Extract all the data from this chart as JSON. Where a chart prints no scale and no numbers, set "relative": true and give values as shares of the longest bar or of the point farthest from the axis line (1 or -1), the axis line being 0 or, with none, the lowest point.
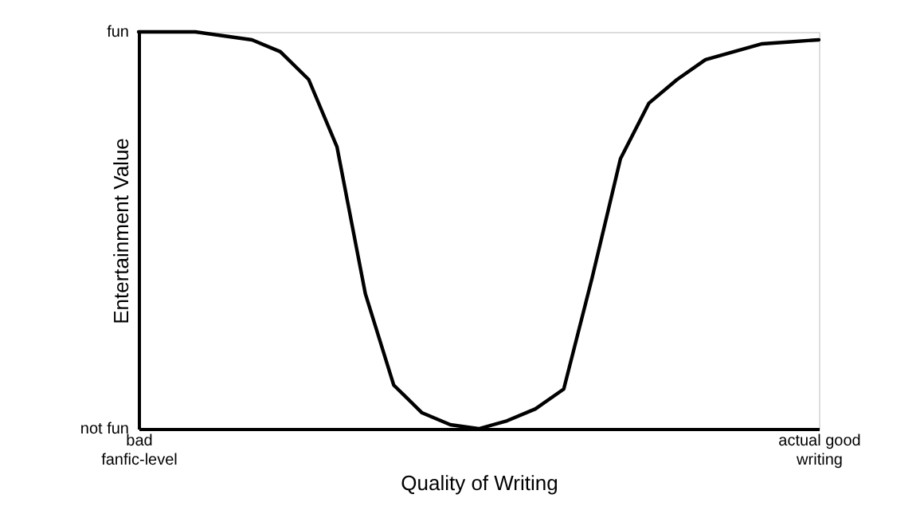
{
  "chart_data": {
    "type": "line",
    "relative": true,
    "xlabel": "Quality of Writing",
    "ylabel": "Entertainment Value",
    "categories": [
      "bad fanfic-level",
      null,
      null,
      null,
      null,
      null,
      null,
      null,
      null,
      null,
      null,
      null,
      null,
      null,
      null,
      null,
      null,
      null,
      null,
      null,
      null,
      null,
      null,
      null,
      "actual good writing"
    ],
    "annotations": [
      "fun",
      "not fun"
    ],
    "marker": "none",
    "line_style": "solid",
    "series": [
      {
        "color": "#000000",
        "values": [
          1,
          1,
          1,
          0.99,
          0.98,
          0.95,
          0.88,
          0.71,
          0.34,
          0.11,
          0.04,
          0.01,
          0,
          0.02,
          0.05,
          0.1,
          0.38,
          0.68,
          0.82,
          0.88,
          0.93,
          0.95,
          0.97,
          0.975,
          0.98
        ]
      }
    ]
  }
}
